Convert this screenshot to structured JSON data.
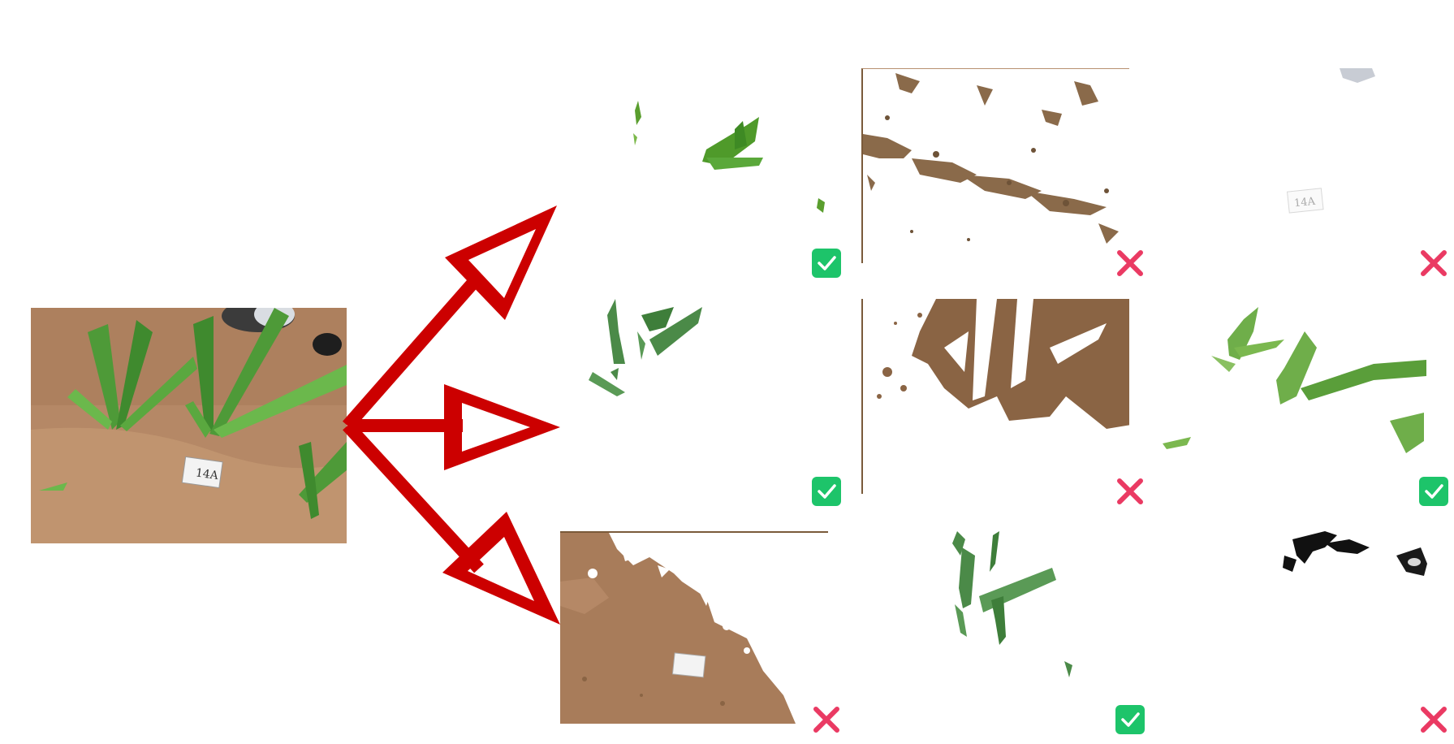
{
  "source_image": {
    "name": "maize-field-photo",
    "tag_text": "14A"
  },
  "colors": {
    "arrow": "#cc0000",
    "accept": "#1dc46a",
    "reject": "#ea3a63",
    "soil": "#b58866",
    "leaf": "#4f9a3a"
  },
  "grid": {
    "rows": 3,
    "cols": 3,
    "cells": [
      {
        "row": 1,
        "col": 1,
        "content": "sparse-green-leaf-fragments",
        "verdict": "accept"
      },
      {
        "row": 1,
        "col": 2,
        "content": "soil-speckle-mask",
        "verdict": "reject"
      },
      {
        "row": 1,
        "col": 3,
        "content": "label-card-mask",
        "verdict": "reject"
      },
      {
        "row": 2,
        "col": 1,
        "content": "dark-green-leaves",
        "verdict": "accept"
      },
      {
        "row": 2,
        "col": 2,
        "content": "soil-with-leaf-holes",
        "verdict": "reject"
      },
      {
        "row": 2,
        "col": 3,
        "content": "light-green-leaves",
        "verdict": "accept"
      },
      {
        "row": 3,
        "col": 1,
        "content": "soil-and-label-region",
        "verdict": "reject"
      },
      {
        "row": 3,
        "col": 2,
        "content": "leaf-blades",
        "verdict": "accept"
      },
      {
        "row": 3,
        "col": 3,
        "content": "dark-shadow-mask",
        "verdict": "reject"
      }
    ]
  }
}
